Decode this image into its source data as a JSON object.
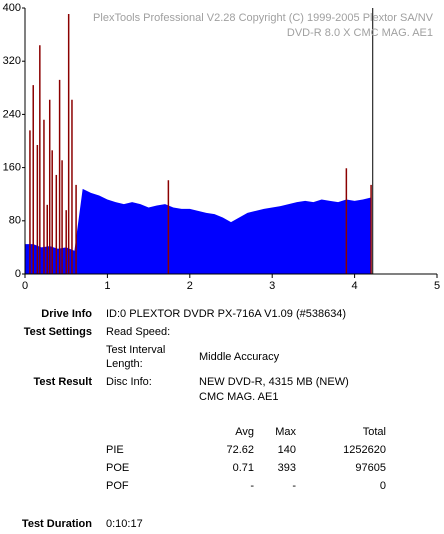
{
  "chart_data": {
    "type": "area",
    "header": [
      "PlexTools Professional V2.28 Copyright (C) 1999-2005 Plextor SA/NV",
      "DVD-R   8.0 X   CMC MAG. AE1"
    ],
    "x": [
      0,
      0.1,
      0.2,
      0.3,
      0.4,
      0.5,
      0.6,
      0.7,
      0.8,
      0.9,
      1.0,
      1.1,
      1.2,
      1.3,
      1.4,
      1.5,
      1.6,
      1.7,
      1.8,
      1.9,
      2.0,
      2.1,
      2.2,
      2.3,
      2.4,
      2.5,
      2.6,
      2.7,
      2.8,
      2.9,
      3.0,
      3.1,
      3.2,
      3.3,
      3.4,
      3.5,
      3.6,
      3.7,
      3.8,
      3.9,
      4.0,
      4.1,
      4.2
    ],
    "series": [
      {
        "color": "#0000ff",
        "values": [
          45,
          45,
          40,
          42,
          38,
          40,
          35,
          128,
          122,
          118,
          112,
          108,
          105,
          108,
          105,
          100,
          103,
          105,
          100,
          98,
          98,
          95,
          92,
          90,
          85,
          78,
          85,
          92,
          95,
          98,
          100,
          102,
          105,
          108,
          110,
          108,
          112,
          110,
          108,
          112,
          110,
          112,
          115
        ]
      },
      {
        "color": "#8b0000",
        "x": [
          0.06,
          0.1,
          0.15,
          0.18,
          0.23,
          0.27,
          0.3,
          0.33,
          0.38,
          0.42,
          0.45,
          0.5,
          0.53,
          0.57,
          0.62,
          1.74,
          3.9,
          4.2
        ],
        "values": [
          216,
          284,
          194,
          344,
          232,
          104,
          262,
          186,
          149,
          292,
          171,
          96,
          391,
          262,
          134,
          141,
          159,
          134
        ]
      }
    ],
    "end_line_x": 4.22,
    "xlim": [
      0,
      5
    ],
    "xticks": [
      0,
      1,
      2,
      3,
      4,
      5
    ],
    "ylim": [
      0,
      400
    ],
    "yticks": [
      0,
      80,
      160,
      240,
      320,
      400
    ]
  },
  "report": {
    "drive_info": {
      "label": "Drive Info",
      "value": "ID:0 PLEXTOR DVDR PX-716A V1.09 (#538634)"
    },
    "test_settings": {
      "label": "Test Settings",
      "read_speed": "Read Speed:",
      "interval_label": [
        "Test Interval",
        "Length:"
      ],
      "interval_value": "Middle Accuracy"
    },
    "test_result": {
      "label": "Test Result",
      "disc_info_label": "Disc Info:",
      "disc_info": [
        "NEW DVD-R, 4315 MB (NEW)",
        "CMC MAG. AE1"
      ]
    },
    "table": {
      "header": [
        "Avg",
        "Max",
        "Total"
      ],
      "rows": [
        [
          "PIE",
          "72.62",
          "140",
          "1252620"
        ],
        [
          "POE",
          "0.71",
          "393",
          "97605"
        ],
        [
          "POF",
          "-",
          "-",
          "0"
        ]
      ]
    },
    "test_duration": {
      "label": "Test Duration",
      "value": "0:10:17"
    }
  }
}
